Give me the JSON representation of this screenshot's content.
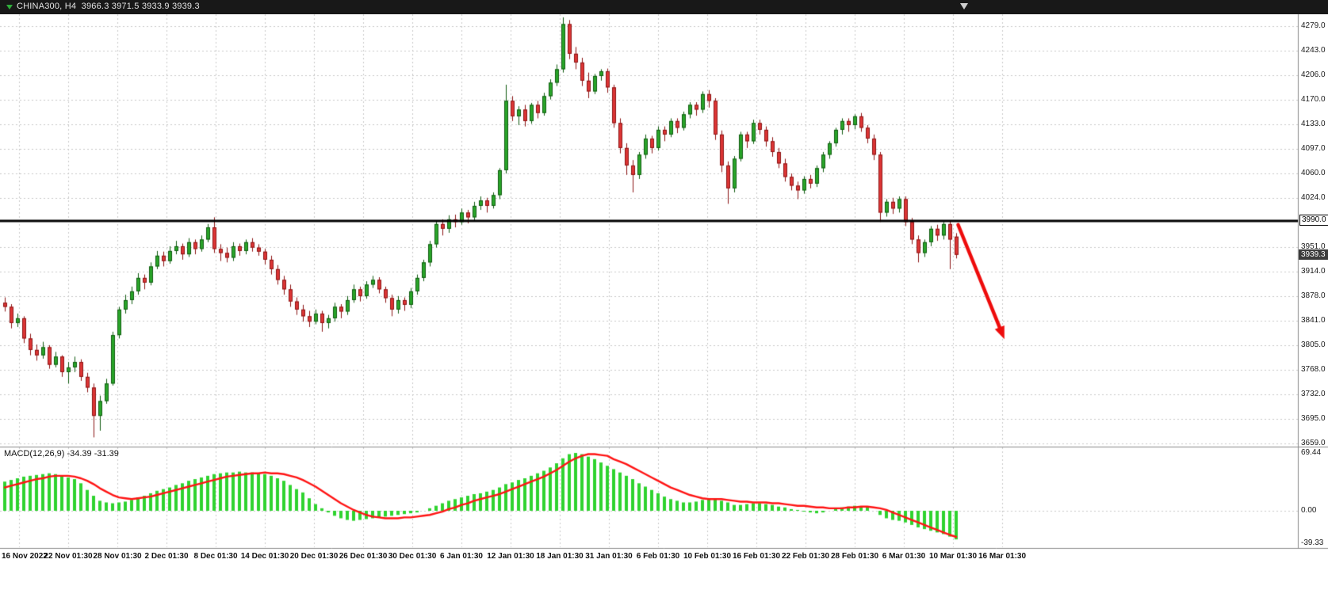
{
  "titlebar": {
    "symbol_title": "CHINA300, H4  3966.3 3971.5 3933.9 3939.3"
  },
  "macd_label": "MACD(12,26,9) -34.39 -31.39",
  "hline_label": "3990.0",
  "current_price_label": "3939.3",
  "colors": {
    "background": "#ffffff",
    "titlebar_bg": "#181818",
    "grid": "#c9c9c9",
    "separator": "#8a8a8a",
    "candle_up_fill": "#2aa52a",
    "candle_up_border": "#115c11",
    "candle_down_fill": "#dd3535",
    "candle_down_border": "#8c1515",
    "macd_hist": "#2fd32f",
    "macd_signal": "#ff1414",
    "hline": "#000000",
    "arrow": "#ee0c0c",
    "badge_bg": "#3c3c3c",
    "badge_text": "#ffffff"
  },
  "chart_data": {
    "type": "candlestick",
    "symbol": "CHINA300",
    "timeframe": "H4",
    "current_bar_ohlc": {
      "open": 3966.3,
      "high": 3971.5,
      "low": 3933.9,
      "close": 3939.3
    },
    "price_ylim": [
      3659.0,
      4279.0
    ],
    "price_tick_labels": [
      "4279.0",
      "4243.0",
      "4206.0",
      "4170.0",
      "4133.0",
      "4097.0",
      "4060.0",
      "4024.0",
      "3951.0",
      "3914.0",
      "3878.0",
      "3841.0",
      "3805.0",
      "3768.0",
      "3732.0",
      "3695.0",
      "3659.0"
    ],
    "x_tick_labels": [
      "16 Nov 2022",
      "22 Nov 01:30",
      "28 Nov 01:30",
      "2 Dec 01:30",
      "8 Dec 01:30",
      "14 Dec 01:30",
      "20 Dec 01:30",
      "26 Dec 01:30",
      "30 Dec 01:30",
      "6 Jan 01:30",
      "12 Jan 01:30",
      "18 Jan 01:30",
      "31 Jan 01:30",
      "6 Feb 01:30",
      "10 Feb 01:30",
      "16 Feb 01:30",
      "22 Feb 01:30",
      "28 Feb 01:30",
      "6 Mar 01:30",
      "10 Mar 01:30",
      "16 Mar 01:30"
    ],
    "ohlc": [
      [
        3868,
        3876,
        3855,
        3862
      ],
      [
        3862,
        3866,
        3830,
        3838
      ],
      [
        3838,
        3852,
        3832,
        3845
      ],
      [
        3845,
        3848,
        3808,
        3815
      ],
      [
        3815,
        3822,
        3790,
        3798
      ],
      [
        3798,
        3806,
        3782,
        3790
      ],
      [
        3790,
        3810,
        3785,
        3802
      ],
      [
        3802,
        3805,
        3770,
        3776
      ],
      [
        3776,
        3795,
        3772,
        3788
      ],
      [
        3788,
        3790,
        3758,
        3765
      ],
      [
        3765,
        3780,
        3748,
        3772
      ],
      [
        3772,
        3788,
        3765,
        3780
      ],
      [
        3780,
        3784,
        3752,
        3758
      ],
      [
        3758,
        3764,
        3735,
        3742
      ],
      [
        3742,
        3748,
        3668,
        3700
      ],
      [
        3700,
        3730,
        3678,
        3722
      ],
      [
        3722,
        3755,
        3718,
        3748
      ],
      [
        3748,
        3825,
        3745,
        3820
      ],
      [
        3820,
        3862,
        3815,
        3858
      ],
      [
        3858,
        3880,
        3852,
        3872
      ],
      [
        3872,
        3892,
        3866,
        3885
      ],
      [
        3885,
        3912,
        3880,
        3905
      ],
      [
        3905,
        3910,
        3888,
        3898
      ],
      [
        3898,
        3928,
        3894,
        3922
      ],
      [
        3922,
        3945,
        3918,
        3938
      ],
      [
        3938,
        3944,
        3922,
        3930
      ],
      [
        3930,
        3952,
        3926,
        3945
      ],
      [
        3945,
        3960,
        3940,
        3952
      ],
      [
        3952,
        3956,
        3932,
        3940
      ],
      [
        3940,
        3964,
        3936,
        3958
      ],
      [
        3958,
        3962,
        3940,
        3948
      ],
      [
        3948,
        3968,
        3944,
        3962
      ],
      [
        3962,
        3985,
        3958,
        3980
      ],
      [
        3980,
        3995,
        3942,
        3948
      ],
      [
        3948,
        3955,
        3930,
        3942
      ],
      [
        3942,
        3950,
        3928,
        3935
      ],
      [
        3935,
        3958,
        3930,
        3952
      ],
      [
        3952,
        3956,
        3938,
        3945
      ],
      [
        3945,
        3962,
        3940,
        3958
      ],
      [
        3958,
        3964,
        3944,
        3950
      ],
      [
        3950,
        3955,
        3938,
        3944
      ],
      [
        3944,
        3948,
        3925,
        3932
      ],
      [
        3932,
        3938,
        3910,
        3918
      ],
      [
        3918,
        3924,
        3895,
        3902
      ],
      [
        3902,
        3908,
        3880,
        3888
      ],
      [
        3888,
        3895,
        3862,
        3870
      ],
      [
        3870,
        3876,
        3850,
        3858
      ],
      [
        3858,
        3865,
        3840,
        3848
      ],
      [
        3848,
        3856,
        3832,
        3840
      ],
      [
        3840,
        3858,
        3836,
        3852
      ],
      [
        3852,
        3856,
        3825,
        3838
      ],
      [
        3838,
        3850,
        3830,
        3845
      ],
      [
        3845,
        3868,
        3840,
        3862
      ],
      [
        3862,
        3866,
        3845,
        3855
      ],
      [
        3855,
        3878,
        3850,
        3872
      ],
      [
        3872,
        3895,
        3868,
        3888
      ],
      [
        3888,
        3892,
        3870,
        3878
      ],
      [
        3878,
        3900,
        3874,
        3895
      ],
      [
        3895,
        3908,
        3890,
        3902
      ],
      [
        3902,
        3906,
        3882,
        3888
      ],
      [
        3888,
        3892,
        3868,
        3875
      ],
      [
        3875,
        3880,
        3848,
        3858
      ],
      [
        3858,
        3878,
        3852,
        3872
      ],
      [
        3872,
        3876,
        3856,
        3865
      ],
      [
        3865,
        3890,
        3860,
        3885
      ],
      [
        3885,
        3910,
        3880,
        3905
      ],
      [
        3905,
        3932,
        3900,
        3928
      ],
      [
        3928,
        3960,
        3922,
        3955
      ],
      [
        3955,
        3990,
        3950,
        3985
      ],
      [
        3985,
        3992,
        3968,
        3978
      ],
      [
        3978,
        3998,
        3972,
        3992
      ],
      [
        3992,
        3999,
        3980,
        3988
      ],
      [
        3988,
        4008,
        3984,
        4002
      ],
      [
        4002,
        4006,
        3986,
        3995
      ],
      [
        3995,
        4018,
        3990,
        4012
      ],
      [
        4012,
        4026,
        4006,
        4020
      ],
      [
        4020,
        4024,
        4002,
        4012
      ],
      [
        4012,
        4032,
        4008,
        4028
      ],
      [
        4028,
        4068,
        4022,
        4065
      ],
      [
        4065,
        4192,
        4060,
        4168
      ],
      [
        4168,
        4175,
        4138,
        4145
      ],
      [
        4145,
        4160,
        4132,
        4155
      ],
      [
        4155,
        4162,
        4130,
        4138
      ],
      [
        4138,
        4165,
        4134,
        4162
      ],
      [
        4162,
        4168,
        4142,
        4150
      ],
      [
        4150,
        4180,
        4146,
        4175
      ],
      [
        4175,
        4200,
        4170,
        4195
      ],
      [
        4195,
        4222,
        4190,
        4215
      ],
      [
        4215,
        4292,
        4210,
        4282
      ],
      [
        4282,
        4288,
        4230,
        4238
      ],
      [
        4238,
        4248,
        4215,
        4225
      ],
      [
        4225,
        4232,
        4190,
        4198
      ],
      [
        4198,
        4210,
        4172,
        4182
      ],
      [
        4182,
        4208,
        4178,
        4205
      ],
      [
        4205,
        4215,
        4198,
        4212
      ],
      [
        4212,
        4216,
        4180,
        4188
      ],
      [
        4188,
        4192,
        4128,
        4135
      ],
      [
        4135,
        4142,
        4090,
        4098
      ],
      [
        4098,
        4105,
        4058,
        4072
      ],
      [
        4072,
        4080,
        4032,
        4058
      ],
      [
        4058,
        4092,
        4052,
        4088
      ],
      [
        4088,
        4118,
        4082,
        4112
      ],
      [
        4112,
        4116,
        4090,
        4098
      ],
      [
        4098,
        4130,
        4094,
        4125
      ],
      [
        4125,
        4130,
        4108,
        4118
      ],
      [
        4118,
        4142,
        4114,
        4138
      ],
      [
        4138,
        4142,
        4120,
        4128
      ],
      [
        4128,
        4152,
        4124,
        4148
      ],
      [
        4148,
        4166,
        4142,
        4162
      ],
      [
        4162,
        4166,
        4146,
        4155
      ],
      [
        4155,
        4182,
        4150,
        4178
      ],
      [
        4178,
        4184,
        4158,
        4168
      ],
      [
        4168,
        4172,
        4110,
        4118
      ],
      [
        4118,
        4124,
        4062,
        4072
      ],
      [
        4072,
        4078,
        4015,
        4038
      ],
      [
        4038,
        4086,
        4032,
        4082
      ],
      [
        4082,
        4122,
        4078,
        4118
      ],
      [
        4118,
        4122,
        4098,
        4108
      ],
      [
        4108,
        4140,
        4104,
        4135
      ],
      [
        4135,
        4140,
        4118,
        4125
      ],
      [
        4125,
        4130,
        4100,
        4108
      ],
      [
        4108,
        4114,
        4085,
        4092
      ],
      [
        4092,
        4098,
        4068,
        4075
      ],
      [
        4075,
        4082,
        4048,
        4055
      ],
      [
        4055,
        4060,
        4035,
        4042
      ],
      [
        4042,
        4048,
        4022,
        4035
      ],
      [
        4035,
        4056,
        4030,
        4052
      ],
      [
        4052,
        4058,
        4038,
        4045
      ],
      [
        4045,
        4072,
        4040,
        4068
      ],
      [
        4068,
        4092,
        4062,
        4088
      ],
      [
        4088,
        4108,
        4082,
        4105
      ],
      [
        4105,
        4128,
        4100,
        4125
      ],
      [
        4125,
        4142,
        4118,
        4138
      ],
      [
        4138,
        4142,
        4122,
        4132
      ],
      [
        4132,
        4148,
        4126,
        4145
      ],
      [
        4145,
        4150,
        4122,
        4128
      ],
      [
        4128,
        4132,
        4105,
        4112
      ],
      [
        4112,
        4118,
        4080,
        4088
      ],
      [
        4088,
        4092,
        3988,
        4002
      ],
      [
        4002,
        4022,
        3996,
        4018
      ],
      [
        4018,
        4024,
        4000,
        4008
      ],
      [
        4008,
        4026,
        4002,
        4022
      ],
      [
        4022,
        4026,
        3982,
        3988
      ],
      [
        3988,
        3994,
        3955,
        3962
      ],
      [
        3962,
        3968,
        3928,
        3942
      ],
      [
        3942,
        3962,
        3936,
        3958
      ],
      [
        3958,
        3982,
        3952,
        3978
      ],
      [
        3978,
        3984,
        3960,
        3968
      ],
      [
        3968,
        3988,
        3962,
        3985
      ],
      [
        3985,
        3990,
        3918,
        3962
      ],
      [
        3966.3,
        3971.5,
        3933.9,
        3939.3
      ]
    ],
    "indicators": {
      "macd": {
        "label": "MACD(12,26,9)",
        "params": [
          12,
          26,
          9
        ],
        "main_value": -34.39,
        "signal_value": -31.39,
        "ylim": [
          -39.33,
          69.44
        ],
        "tick_labels": [
          "69.44",
          "0.00",
          "-39.33"
        ],
        "main": [
          35,
          37,
          39,
          41,
          42,
          43,
          44,
          45,
          44,
          42,
          40,
          38,
          33,
          25,
          18,
          12,
          10,
          9,
          10,
          11,
          13,
          16,
          18,
          21,
          24,
          26,
          28,
          31,
          33,
          36,
          38,
          40,
          42,
          44,
          45,
          46,
          46,
          47,
          46,
          46,
          45,
          44,
          42,
          39,
          36,
          31,
          26,
          22,
          15,
          8,
          3,
          -2,
          -6,
          -9,
          -11,
          -12,
          -11,
          -10,
          -9,
          -8,
          -7,
          -6,
          -5,
          -4,
          -3,
          -2,
          0,
          3,
          6,
          9,
          12,
          14,
          16,
          18,
          20,
          21,
          23,
          25,
          28,
          32,
          34,
          37,
          39,
          42,
          45,
          48,
          52,
          57,
          63,
          68,
          69.4,
          68,
          65,
          62,
          58,
          54,
          50,
          46,
          42,
          38,
          33,
          29,
          25,
          21,
          17,
          14,
          12,
          10,
          10,
          11,
          13,
          14,
          14,
          12,
          10,
          7,
          7,
          8,
          9,
          9,
          8,
          7,
          5,
          4,
          2,
          1,
          -1,
          -2,
          -3,
          -2,
          0,
          2,
          4,
          5,
          6,
          5,
          4,
          0,
          -5,
          -9,
          -11,
          -12,
          -14,
          -17,
          -20,
          -22,
          -24,
          -26,
          -28,
          -31,
          -34.39
        ],
        "signal": [
          28,
          30,
          32,
          34,
          36,
          38,
          39,
          41,
          42,
          42,
          42,
          41,
          39,
          36,
          32,
          27,
          23,
          19,
          16,
          15,
          14,
          15,
          16,
          17,
          19,
          21,
          23,
          25,
          27,
          29,
          31,
          33,
          35,
          37,
          39,
          41,
          42,
          43,
          44,
          45,
          45,
          46,
          45,
          45,
          44,
          42,
          40,
          37,
          33,
          29,
          24,
          19,
          14,
          9,
          5,
          1,
          -2,
          -5,
          -7,
          -8,
          -9,
          -9,
          -9,
          -8,
          -8,
          -7,
          -6,
          -5,
          -3,
          -1,
          2,
          4,
          7,
          9,
          12,
          14,
          16,
          18,
          20,
          23,
          26,
          29,
          32,
          35,
          38,
          41,
          45,
          49,
          54,
          59,
          63,
          66,
          68,
          68,
          67,
          66,
          62,
          59,
          56,
          52,
          48,
          44,
          40,
          36,
          32,
          28,
          25,
          22,
          19,
          17,
          15,
          14,
          14,
          14,
          13,
          12,
          11,
          11,
          10,
          10,
          10,
          9,
          9,
          8,
          7,
          6,
          6,
          5,
          4,
          4,
          3,
          3,
          3,
          4,
          4,
          5,
          5,
          4,
          3,
          1,
          -2,
          -5,
          -8,
          -11,
          -14,
          -17,
          -20,
          -23,
          -26,
          -29,
          -31.39
        ]
      }
    },
    "annotations": {
      "horizontal_line_price": 3990.0,
      "down_arrow": {
        "from": {
          "bar": 150.3,
          "price": 3984
        },
        "to": {
          "bar": 157.6,
          "price": 3814
        }
      }
    }
  }
}
